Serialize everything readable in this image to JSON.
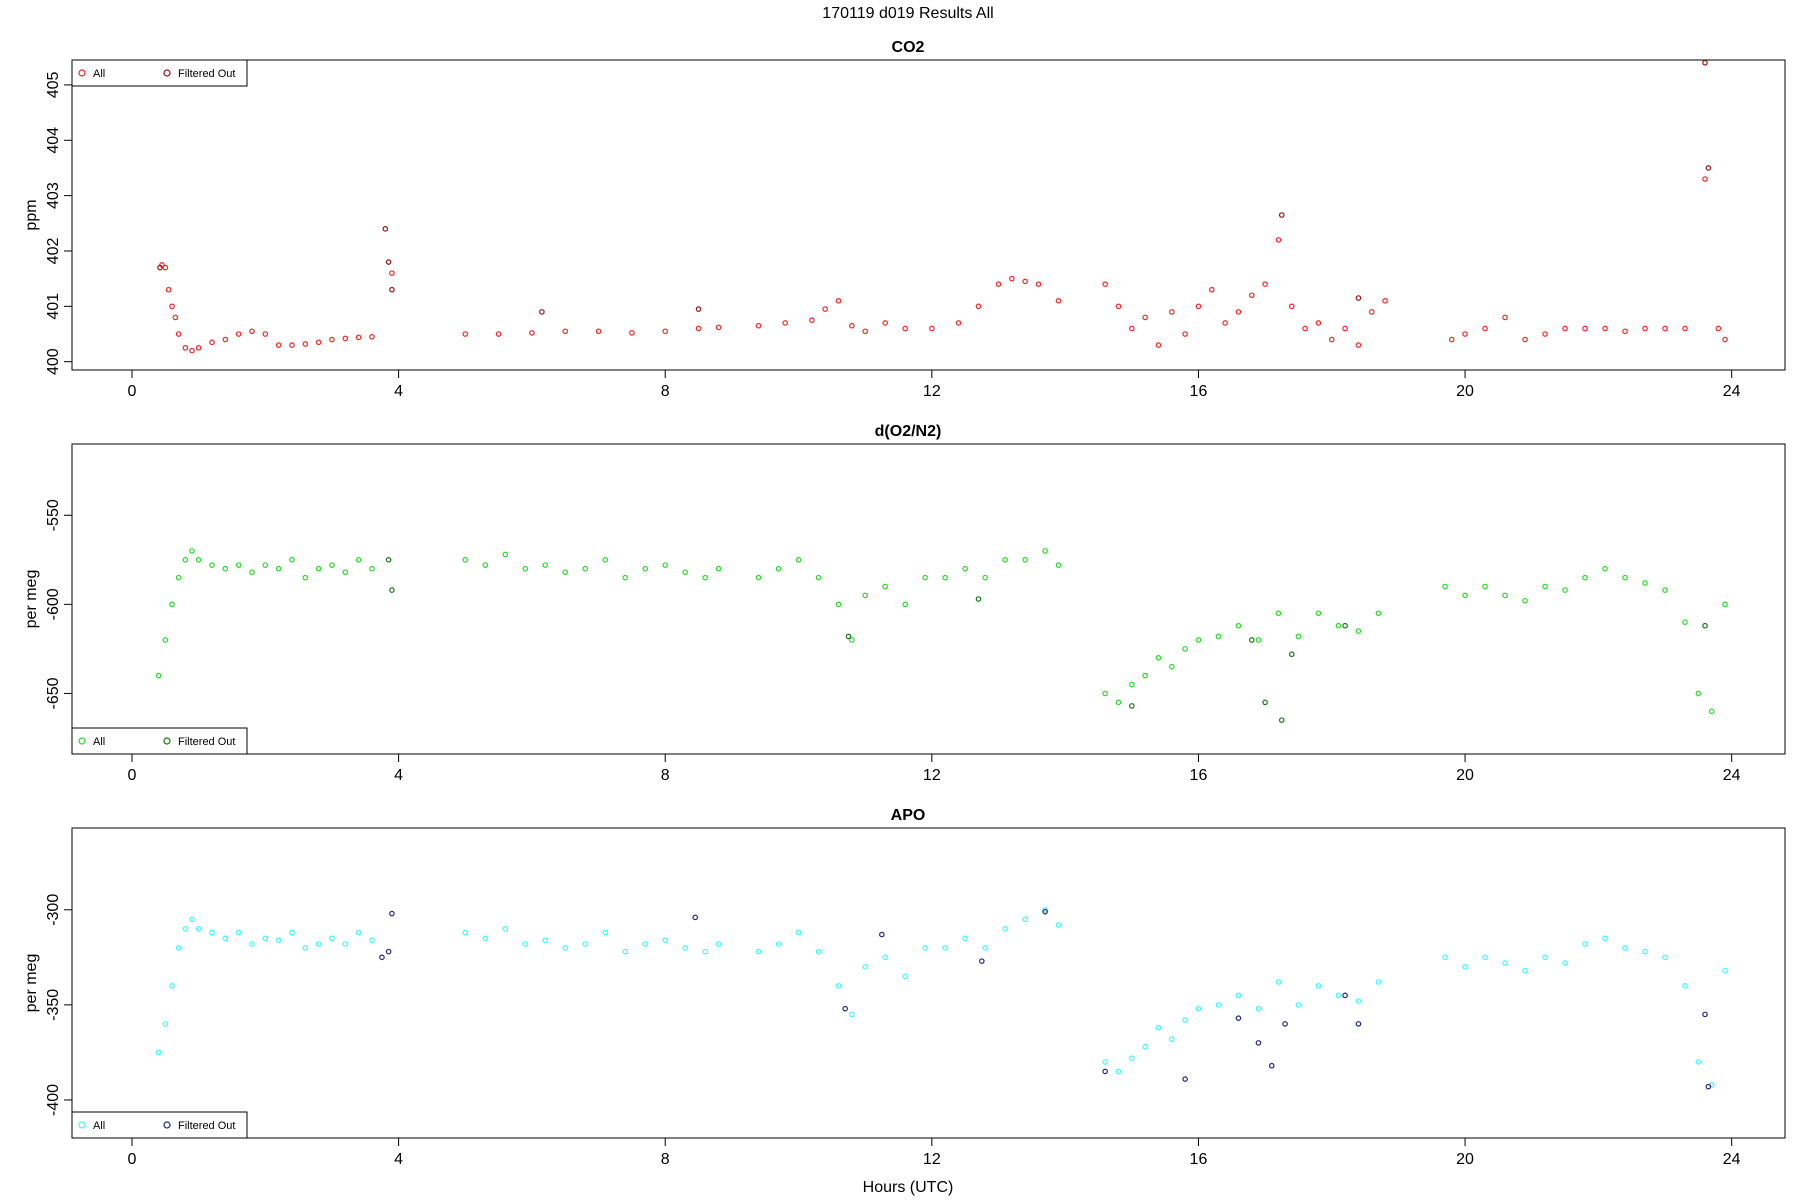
{
  "figure": {
    "title": "170119   d019   Results All"
  },
  "chart_data": [
    {
      "type": "scatter",
      "title": "CO2",
      "xlabel": "",
      "ylabel": "ppm",
      "xlim": [
        -0.9,
        24.8
      ],
      "ylim": [
        399.85,
        405.45
      ],
      "xticks": [
        0,
        4,
        8,
        12,
        16,
        20,
        24
      ],
      "yticks": [
        400,
        401,
        402,
        403,
        404,
        405
      ],
      "legend": {
        "placement": "top-left",
        "entries": [
          "All",
          "Filtered Out"
        ]
      },
      "colors": {
        "all": "#ff2020",
        "filtered": "#9a1010"
      },
      "series": [
        {
          "name": "All",
          "x": [
            0.45,
            0.5,
            0.55,
            0.6,
            0.65,
            0.7,
            0.8,
            0.9,
            1.0,
            1.2,
            1.4,
            1.6,
            1.8,
            2.0,
            2.2,
            2.4,
            2.6,
            2.8,
            3.0,
            3.2,
            3.4,
            3.6,
            3.9,
            5.0,
            5.5,
            6.0,
            6.5,
            7.0,
            7.5,
            8.0,
            8.5,
            8.8,
            9.4,
            9.8,
            10.2,
            10.4,
            10.6,
            10.8,
            11.0,
            11.3,
            11.6,
            12.0,
            12.4,
            12.7,
            13.0,
            13.2,
            13.4,
            13.6,
            13.9,
            14.6,
            14.8,
            15.0,
            15.2,
            15.4,
            15.6,
            15.8,
            16.0,
            16.2,
            16.4,
            16.6,
            16.8,
            17.0,
            17.2,
            17.4,
            17.6,
            17.8,
            18.0,
            18.2,
            18.4,
            18.6,
            18.8,
            19.8,
            20.0,
            20.3,
            20.6,
            20.9,
            21.2,
            21.5,
            21.8,
            22.1,
            22.4,
            22.7,
            23.0,
            23.3,
            23.6,
            23.8,
            23.9
          ],
          "y": [
            401.75,
            401.7,
            401.3,
            401.0,
            400.8,
            400.5,
            400.25,
            400.2,
            400.25,
            400.35,
            400.4,
            400.5,
            400.55,
            400.5,
            400.3,
            400.3,
            400.32,
            400.35,
            400.4,
            400.42,
            400.44,
            400.45,
            401.6,
            400.5,
            400.5,
            400.52,
            400.55,
            400.55,
            400.52,
            400.55,
            400.6,
            400.62,
            400.65,
            400.7,
            400.75,
            400.95,
            401.1,
            400.65,
            400.55,
            400.7,
            400.6,
            400.6,
            400.7,
            401.0,
            401.4,
            401.5,
            401.45,
            401.4,
            401.1,
            401.4,
            401.0,
            400.6,
            400.8,
            400.3,
            400.9,
            400.5,
            401.0,
            401.3,
            400.7,
            400.9,
            401.2,
            401.4,
            402.2,
            401.0,
            400.6,
            400.7,
            400.4,
            400.6,
            400.3,
            400.9,
            401.1,
            400.4,
            400.5,
            400.6,
            400.8,
            400.4,
            400.5,
            400.6,
            400.6,
            400.6,
            400.55,
            400.6,
            400.6,
            400.6,
            403.3,
            400.6,
            400.4
          ]
        },
        {
          "name": "Filtered Out",
          "x": [
            0.42,
            3.8,
            3.85,
            3.9,
            6.15,
            8.5,
            17.25,
            18.4,
            23.6,
            23.65
          ],
          "y": [
            401.7,
            402.4,
            401.8,
            401.3,
            400.9,
            400.95,
            402.65,
            401.15,
            405.4,
            403.5
          ]
        }
      ]
    },
    {
      "type": "scatter",
      "title": "d(O2/N2)",
      "xlabel": "",
      "ylabel": "per meg",
      "xlim": [
        -0.9,
        24.8
      ],
      "ylim": [
        -684,
        -510
      ],
      "xticks": [
        0,
        4,
        8,
        12,
        16,
        20,
        24
      ],
      "yticks": [
        -550,
        -600,
        -650
      ],
      "legend": {
        "placement": "bottom-left",
        "entries": [
          "All",
          "Filtered Out"
        ]
      },
      "colors": {
        "all": "#22dd22",
        "filtered": "#117711"
      },
      "series": [
        {
          "name": "All",
          "x": [
            0.4,
            0.5,
            0.6,
            0.7,
            0.8,
            0.9,
            1.0,
            1.2,
            1.4,
            1.6,
            1.8,
            2.0,
            2.2,
            2.4,
            2.6,
            2.8,
            3.0,
            3.2,
            3.4,
            3.6,
            5.0,
            5.3,
            5.6,
            5.9,
            6.2,
            6.5,
            6.8,
            7.1,
            7.4,
            7.7,
            8.0,
            8.3,
            8.6,
            8.8,
            9.4,
            9.7,
            10.0,
            10.3,
            10.6,
            10.8,
            11.0,
            11.3,
            11.6,
            11.9,
            12.2,
            12.5,
            12.8,
            13.1,
            13.4,
            13.7,
            13.9,
            14.6,
            14.8,
            15.0,
            15.2,
            15.4,
            15.6,
            15.8,
            16.0,
            16.3,
            16.6,
            16.9,
            17.2,
            17.5,
            17.8,
            18.1,
            18.4,
            18.7,
            19.7,
            20.0,
            20.3,
            20.6,
            20.9,
            21.2,
            21.5,
            21.8,
            22.1,
            22.4,
            22.7,
            23.0,
            23.3,
            23.5,
            23.7,
            23.9
          ],
          "y": [
            -640,
            -620,
            -600,
            -585,
            -575,
            -570,
            -575,
            -578,
            -580,
            -578,
            -582,
            -578,
            -580,
            -575,
            -585,
            -580,
            -578,
            -582,
            -575,
            -580,
            -575,
            -578,
            -572,
            -580,
            -578,
            -582,
            -580,
            -575,
            -585,
            -580,
            -578,
            -582,
            -585,
            -580,
            -585,
            -580,
            -575,
            -585,
            -600,
            -620,
            -595,
            -590,
            -600,
            -585,
            -585,
            -580,
            -585,
            -575,
            -575,
            -570,
            -578,
            -650,
            -655,
            -645,
            -640,
            -630,
            -635,
            -625,
            -620,
            -618,
            -612,
            -620,
            -605,
            -618,
            -605,
            -612,
            -615,
            -605,
            -590,
            -595,
            -590,
            -595,
            -598,
            -590,
            -592,
            -585,
            -580,
            -585,
            -588,
            -592,
            -610,
            -650,
            -660,
            -600
          ]
        },
        {
          "name": "Filtered Out",
          "x": [
            3.85,
            3.9,
            10.75,
            12.7,
            15.0,
            16.8,
            17.0,
            17.25,
            17.4,
            18.2,
            23.6
          ],
          "y": [
            -575,
            -592,
            -618,
            -597,
            -657,
            -620,
            -655,
            -665,
            -628,
            -612,
            -612
          ]
        }
      ]
    },
    {
      "type": "scatter",
      "title": "APO",
      "xlabel": "Hours (UTC)",
      "ylabel": "per meg",
      "xlim": [
        -0.9,
        24.8
      ],
      "ylim": [
        -420,
        -257
      ],
      "xticks": [
        0,
        4,
        8,
        12,
        16,
        20,
        24
      ],
      "yticks": [
        -300,
        -350,
        -400
      ],
      "legend": {
        "placement": "bottom-left",
        "entries": [
          "All",
          "Filtered Out"
        ]
      },
      "colors": {
        "all": "#33ffff",
        "filtered": "#222288"
      },
      "series": [
        {
          "name": "All",
          "x": [
            0.4,
            0.5,
            0.6,
            0.7,
            0.8,
            0.9,
            1.0,
            1.2,
            1.4,
            1.6,
            1.8,
            2.0,
            2.2,
            2.4,
            2.6,
            2.8,
            3.0,
            3.2,
            3.4,
            3.6,
            5.0,
            5.3,
            5.6,
            5.9,
            6.2,
            6.5,
            6.8,
            7.1,
            7.4,
            7.7,
            8.0,
            8.3,
            8.6,
            8.8,
            9.4,
            9.7,
            10.0,
            10.3,
            10.6,
            10.8,
            11.0,
            11.3,
            11.6,
            11.9,
            12.2,
            12.5,
            12.8,
            13.1,
            13.4,
            13.7,
            13.9,
            14.6,
            14.8,
            15.0,
            15.2,
            15.4,
            15.6,
            15.8,
            16.0,
            16.3,
            16.6,
            16.9,
            17.2,
            17.5,
            17.8,
            18.1,
            18.4,
            18.7,
            19.7,
            20.0,
            20.3,
            20.6,
            20.9,
            21.2,
            21.5,
            21.8,
            22.1,
            22.4,
            22.7,
            23.0,
            23.3,
            23.5,
            23.7,
            23.9
          ],
          "y": [
            -375,
            -360,
            -340,
            -320,
            -310,
            -305,
            -310,
            -312,
            -315,
            -312,
            -318,
            -315,
            -316,
            -312,
            -320,
            -318,
            -315,
            -318,
            -312,
            -316,
            -312,
            -315,
            -310,
            -318,
            -316,
            -320,
            -318,
            -312,
            -322,
            -318,
            -316,
            -320,
            -322,
            -318,
            -322,
            -318,
            -312,
            -322,
            -340,
            -355,
            -330,
            -325,
            -335,
            -320,
            -320,
            -315,
            -320,
            -310,
            -305,
            -300,
            -308,
            -380,
            -385,
            -378,
            -372,
            -362,
            -368,
            -358,
            -352,
            -350,
            -345,
            -352,
            -338,
            -350,
            -340,
            -345,
            -348,
            -338,
            -325,
            -330,
            -325,
            -328,
            -332,
            -325,
            -328,
            -318,
            -315,
            -320,
            -322,
            -325,
            -340,
            -380,
            -392,
            -332
          ]
        },
        {
          "name": "Filtered Out",
          "x": [
            3.75,
            3.85,
            3.9,
            8.45,
            10.7,
            11.25,
            12.75,
            13.7,
            14.6,
            15.8,
            16.6,
            16.9,
            17.1,
            17.3,
            18.2,
            18.4,
            23.6,
            23.65
          ],
          "y": [
            -325,
            -322,
            -302,
            -304,
            -352,
            -313,
            -327,
            -301,
            -385,
            -389,
            -357,
            -370,
            -382,
            -360,
            -345,
            -360,
            -355,
            -393
          ]
        }
      ]
    }
  ]
}
